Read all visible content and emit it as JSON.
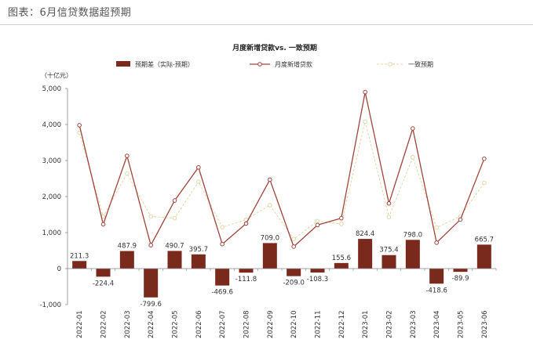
{
  "figure_title": "图表：6月信贷数据超预期",
  "chart_data": {
    "type": "bar",
    "title": "月度新增贷款vs. 一致预期",
    "ylabel": "（十亿元）",
    "ylim": [
      -1000,
      5000
    ],
    "yticks": [
      "5,000",
      "4,000",
      "3,000",
      "2,000",
      "1,000",
      "0",
      "-1,000"
    ],
    "categories": [
      "2022-01",
      "2022-02",
      "2022-03",
      "2022-04",
      "2022-05",
      "2022-06",
      "2022-07",
      "2022-08",
      "2022-09",
      "2022-10",
      "2022-11",
      "2022-12",
      "2023-01",
      "2023-02",
      "2023-03",
      "2023-04",
      "2023-05",
      "2023-06"
    ],
    "legend": {
      "position": "top"
    },
    "series": [
      {
        "name": "预期差（实际-预期）",
        "type": "bar",
        "color": "#7a2a1c",
        "values": [
          211.3,
          -224.4,
          487.9,
          -799.6,
          490.7,
          395.7,
          -469.6,
          -111.8,
          709.0,
          -209.0,
          -108.3,
          155.6,
          824.4,
          375.4,
          798.0,
          -418.6,
          -89.9,
          665.7
        ],
        "labels": [
          "211.3",
          "-224.4",
          "487.9",
          "-799.6",
          "490.7",
          "395.7",
          "-469.6",
          "-111.8",
          "709.0",
          "-209.0",
          "-108.3",
          "155.6",
          "824.4",
          "375.4",
          "798.0",
          "-418.6",
          "-89.9",
          "665.7"
        ]
      },
      {
        "name": "月度新增贷款",
        "type": "line",
        "color": "#a0443a",
        "values": [
          3980,
          1230,
          3130,
          650,
          1890,
          2810,
          680,
          1250,
          2470,
          610,
          1210,
          1400,
          4900,
          1810,
          3890,
          720,
          1360,
          3050
        ]
      },
      {
        "name": "一致预期",
        "type": "line-dashed",
        "color": "#ddd8a8",
        "values": [
          3770,
          1450,
          2640,
          1450,
          1400,
          2410,
          1150,
          1360,
          1760,
          820,
          1320,
          1240,
          4080,
          1430,
          3090,
          1140,
          1450,
          2380
        ]
      }
    ]
  }
}
